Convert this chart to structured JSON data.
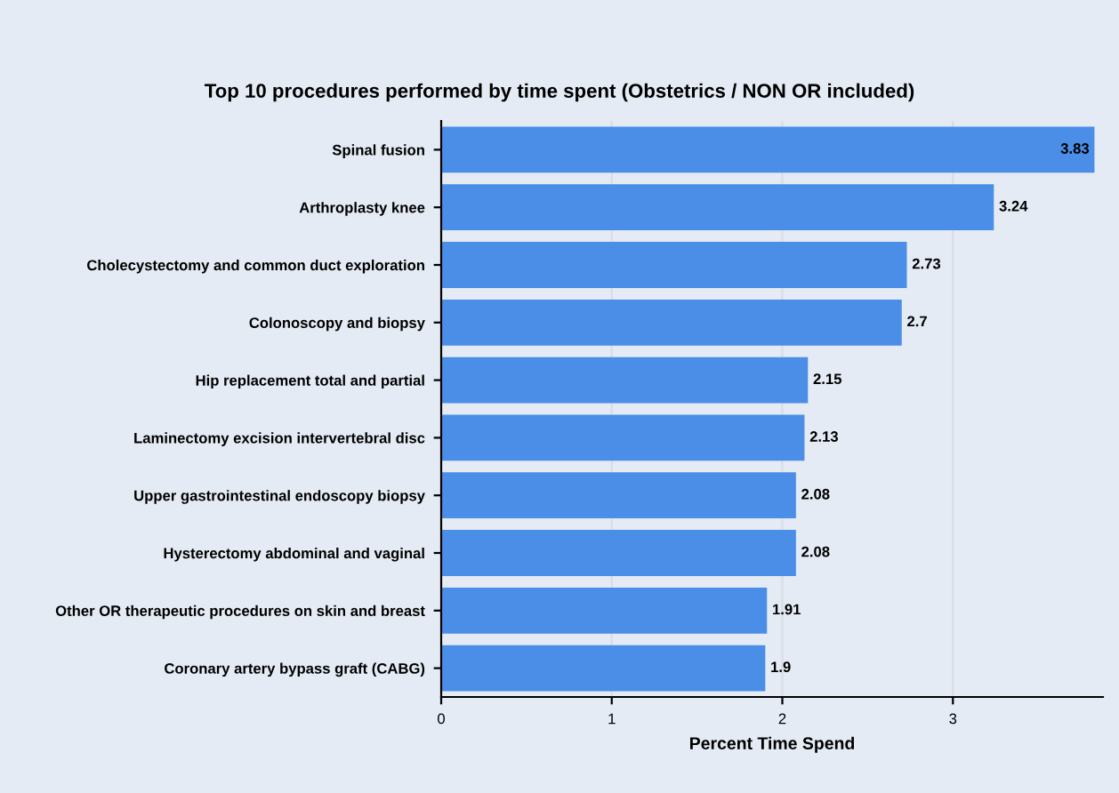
{
  "chart_data": {
    "type": "bar",
    "orientation": "horizontal",
    "title": "Top 10 procedures performed by time spent (Obstetrics / NON OR included)",
    "xlabel": "Percent Time Spend",
    "categories": [
      "Spinal fusion",
      "Arthroplasty knee",
      "Cholecystectomy and common duct exploration",
      "Colonoscopy and biopsy",
      "Hip replacement total and partial",
      "Laminectomy excision intervertebral disc",
      "Upper gastrointestinal endoscopy biopsy",
      "Hysterectomy abdominal and vaginal",
      "Other OR therapeutic procedures on skin and breast",
      "Coronary artery bypass graft (CABG)"
    ],
    "values": [
      3.83,
      3.24,
      2.73,
      2.7,
      2.15,
      2.13,
      2.08,
      2.08,
      1.91,
      1.9
    ],
    "color": "#4a8ee8",
    "data_labels": true,
    "xlim": [
      0,
      3.88
    ],
    "xticks": [
      0,
      1,
      2,
      3
    ],
    "grid": "x"
  }
}
